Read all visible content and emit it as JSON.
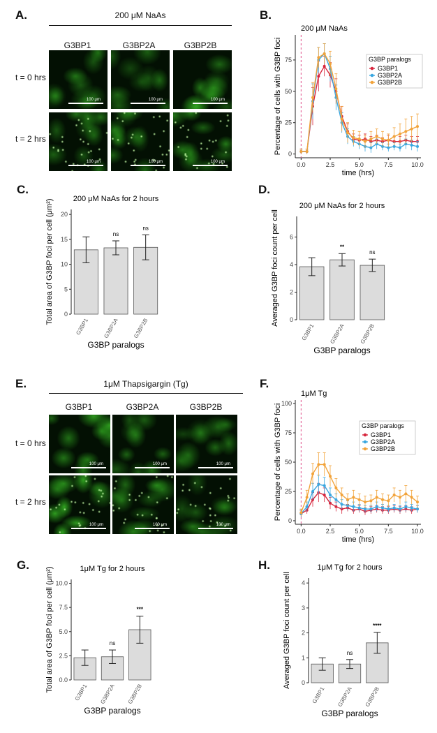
{
  "panels": {
    "A": {
      "label": "A.",
      "header": "200 μM NaAs",
      "columns": [
        "G3BP1",
        "G3BP2A",
        "G3BP2B"
      ],
      "rows": [
        "t = 0 hrs",
        "t = 2 hrs"
      ],
      "scale_text": "100 μm"
    },
    "E": {
      "label": "E.",
      "header": "1μM Thapsigargin (Tg)",
      "columns": [
        "G3BP1",
        "G3BP2A",
        "G3BP2B"
      ],
      "rows": [
        "t = 0 hrs",
        "t = 2 hrs"
      ],
      "scale_text": "100 μm"
    },
    "B": {
      "label": "B."
    },
    "C": {
      "label": "C."
    },
    "D": {
      "label": "D."
    },
    "F": {
      "label": "F."
    },
    "G": {
      "label": "G."
    },
    "H": {
      "label": "H."
    }
  },
  "colors": {
    "G3BP1": "#d7263d",
    "G3BP2A": "#3aa7e0",
    "G3BP2B": "#f2a33a",
    "bar_fill": "#dcdcdc",
    "dashed": "#e0508a"
  },
  "chart_data": [
    {
      "id": "B",
      "type": "line",
      "title": "200 μM NaAs",
      "xlabel": "time (hrs)",
      "ylabel": "Percentage of cells with G3BP foci",
      "xlim": [
        -0.5,
        10.3
      ],
      "ylim": [
        -3,
        95
      ],
      "xticks": [
        0.0,
        2.5,
        5.0,
        7.5,
        10.0
      ],
      "xtick_labels": [
        "0.0",
        "2.5",
        "5.0",
        "7.5",
        "10.0"
      ],
      "yticks": [
        0,
        25,
        50,
        75
      ],
      "ytick_labels": [
        "0",
        "25",
        "50",
        "75"
      ],
      "vline": 0,
      "legend_title": "G3BP paralogs",
      "legend_position": "right",
      "x": [
        0,
        0.5,
        1,
        1.5,
        2,
        2.5,
        3,
        3.5,
        4,
        4.5,
        5,
        5.5,
        6,
        6.5,
        7,
        7.5,
        8,
        8.5,
        9,
        9.5,
        10
      ],
      "series": [
        {
          "name": "G3BP1",
          "values": [
            2,
            2,
            38,
            62,
            70,
            63,
            50,
            30,
            18,
            12,
            11,
            12,
            10,
            11,
            10,
            11,
            10,
            10,
            11,
            10,
            10
          ],
          "err": [
            2,
            2,
            15,
            12,
            8,
            10,
            10,
            8,
            6,
            4,
            4,
            4,
            4,
            4,
            3,
            4,
            4,
            4,
            4,
            4,
            4
          ]
        },
        {
          "name": "G3BP2A",
          "values": [
            2,
            2,
            42,
            75,
            80,
            68,
            45,
            25,
            14,
            10,
            8,
            6,
            5,
            8,
            6,
            5,
            6,
            5,
            8,
            7,
            6
          ],
          "err": [
            2,
            2,
            14,
            10,
            8,
            10,
            10,
            8,
            6,
            4,
            4,
            4,
            4,
            4,
            3,
            3,
            3,
            3,
            4,
            4,
            4
          ]
        },
        {
          "name": "G3BP2B",
          "values": [
            2,
            2,
            45,
            77,
            80,
            72,
            52,
            28,
            17,
            13,
            12,
            10,
            12,
            14,
            12,
            11,
            14,
            16,
            18,
            20,
            22
          ],
          "err": [
            2,
            2,
            12,
            8,
            8,
            10,
            12,
            10,
            8,
            6,
            6,
            5,
            6,
            6,
            6,
            5,
            7,
            8,
            10,
            10,
            10
          ]
        }
      ]
    },
    {
      "id": "C",
      "type": "bar",
      "title": "200 μM NaAs for 2 hours",
      "xlabel": "G3BP paralogs",
      "ylabel": "Total area of G3BP foci per cell (μm²)",
      "categories": [
        "G3BP1",
        "G3BP2A",
        "G3BP2B"
      ],
      "values": [
        12.9,
        13.3,
        13.4
      ],
      "err": [
        2.6,
        1.4,
        2.5
      ],
      "annotations": [
        "",
        "ns",
        "ns"
      ],
      "ylim": [
        0,
        21
      ],
      "yticks": [
        0,
        5,
        10,
        15,
        20
      ],
      "ytick_labels": [
        "0",
        "5",
        "10",
        "15",
        "20"
      ]
    },
    {
      "id": "D",
      "type": "bar",
      "title": "200 μM NaAs for 2 hours",
      "xlabel": "G3BP paralogs",
      "ylabel": "Averaged G3BP foci count per cell",
      "categories": [
        "G3BP1",
        "G3BP2A",
        "G3BP2B"
      ],
      "values": [
        3.85,
        4.35,
        3.95
      ],
      "err": [
        0.65,
        0.45,
        0.45
      ],
      "annotations": [
        "",
        "**",
        "ns"
      ],
      "ylim": [
        0,
        7.5
      ],
      "yticks": [
        0,
        2,
        4,
        6
      ],
      "ytick_labels": [
        "0",
        "2",
        "4",
        "6"
      ]
    },
    {
      "id": "F",
      "type": "line",
      "title": "1μM Tg",
      "xlabel": "time (hrs)",
      "ylabel": "Percentage of cells with G3BP foci",
      "xlim": [
        -0.5,
        10.3
      ],
      "ylim": [
        -3,
        103
      ],
      "xticks": [
        0.0,
        2.5,
        5.0,
        7.5,
        10.0
      ],
      "xtick_labels": [
        "0.0",
        "2.5",
        "5.0",
        "7.5",
        "10.0"
      ],
      "yticks": [
        0,
        25,
        50,
        75,
        100
      ],
      "ytick_labels": [
        "0",
        "25",
        "50",
        "75",
        "100"
      ],
      "vline": 0,
      "legend_title": "G3BP paralogs",
      "legend_position": "right",
      "x": [
        0,
        0.5,
        1,
        1.5,
        2,
        2.5,
        3,
        3.5,
        4,
        4.5,
        5,
        5.5,
        6,
        6.5,
        7,
        7.5,
        8,
        8.5,
        9,
        9.5,
        10
      ],
      "series": [
        {
          "name": "G3BP1",
          "values": [
            6,
            9,
            18,
            24,
            22,
            15,
            12,
            10,
            11,
            9,
            10,
            8,
            9,
            10,
            9,
            9,
            10,
            9,
            10,
            9,
            10
          ],
          "err": [
            3,
            3,
            6,
            8,
            6,
            5,
            4,
            4,
            3,
            3,
            3,
            3,
            3,
            3,
            3,
            3,
            3,
            3,
            3,
            3,
            3
          ]
        },
        {
          "name": "G3BP2A",
          "values": [
            6,
            12,
            25,
            31,
            30,
            22,
            18,
            14,
            13,
            12,
            11,
            10,
            10,
            12,
            11,
            10,
            11,
            10,
            12,
            11,
            10
          ],
          "err": [
            3,
            4,
            7,
            8,
            7,
            6,
            5,
            4,
            4,
            4,
            3,
            3,
            3,
            4,
            3,
            3,
            3,
            3,
            4,
            3,
            3
          ]
        },
        {
          "name": "G3BP2B",
          "values": [
            7,
            20,
            40,
            48,
            48,
            38,
            28,
            22,
            18,
            20,
            18,
            16,
            17,
            20,
            18,
            17,
            22,
            20,
            23,
            20,
            16
          ],
          "err": [
            3,
            6,
            9,
            10,
            10,
            9,
            8,
            6,
            5,
            6,
            5,
            5,
            5,
            6,
            5,
            5,
            6,
            6,
            7,
            6,
            5
          ]
        }
      ]
    },
    {
      "id": "G",
      "type": "bar",
      "title": "1μM Tg for 2 hours",
      "xlabel": "G3BP paralogs",
      "ylabel": "Total area of G3BP foci per cell (μm²)",
      "categories": [
        "G3BP1",
        "G3BP2A",
        "G3BP2B"
      ],
      "values": [
        2.3,
        2.4,
        5.2
      ],
      "err": [
        0.8,
        0.7,
        1.4
      ],
      "annotations": [
        "",
        "ns",
        "***"
      ],
      "ylim": [
        0,
        10.4
      ],
      "yticks": [
        0,
        2.5,
        5,
        7.5,
        10
      ],
      "ytick_labels": [
        "0.0",
        "2.5",
        "5.0",
        "7.5",
        "10.0"
      ]
    },
    {
      "id": "H",
      "type": "bar",
      "title": "1μM Tg for 2 hours",
      "xlabel": "G3BP paralogs",
      "ylabel": "Averaged G3BP foci count per cell",
      "categories": [
        "G3BP1",
        "G3BP2A",
        "G3BP2B"
      ],
      "values": [
        0.75,
        0.75,
        1.6
      ],
      "err": [
        0.25,
        0.18,
        0.42
      ],
      "annotations": [
        "",
        "ns",
        "****"
      ],
      "ylim": [
        0,
        4.2
      ],
      "yticks": [
        0,
        1,
        2,
        3,
        4
      ],
      "ytick_labels": [
        "0",
        "1",
        "2",
        "3",
        "4"
      ]
    }
  ]
}
